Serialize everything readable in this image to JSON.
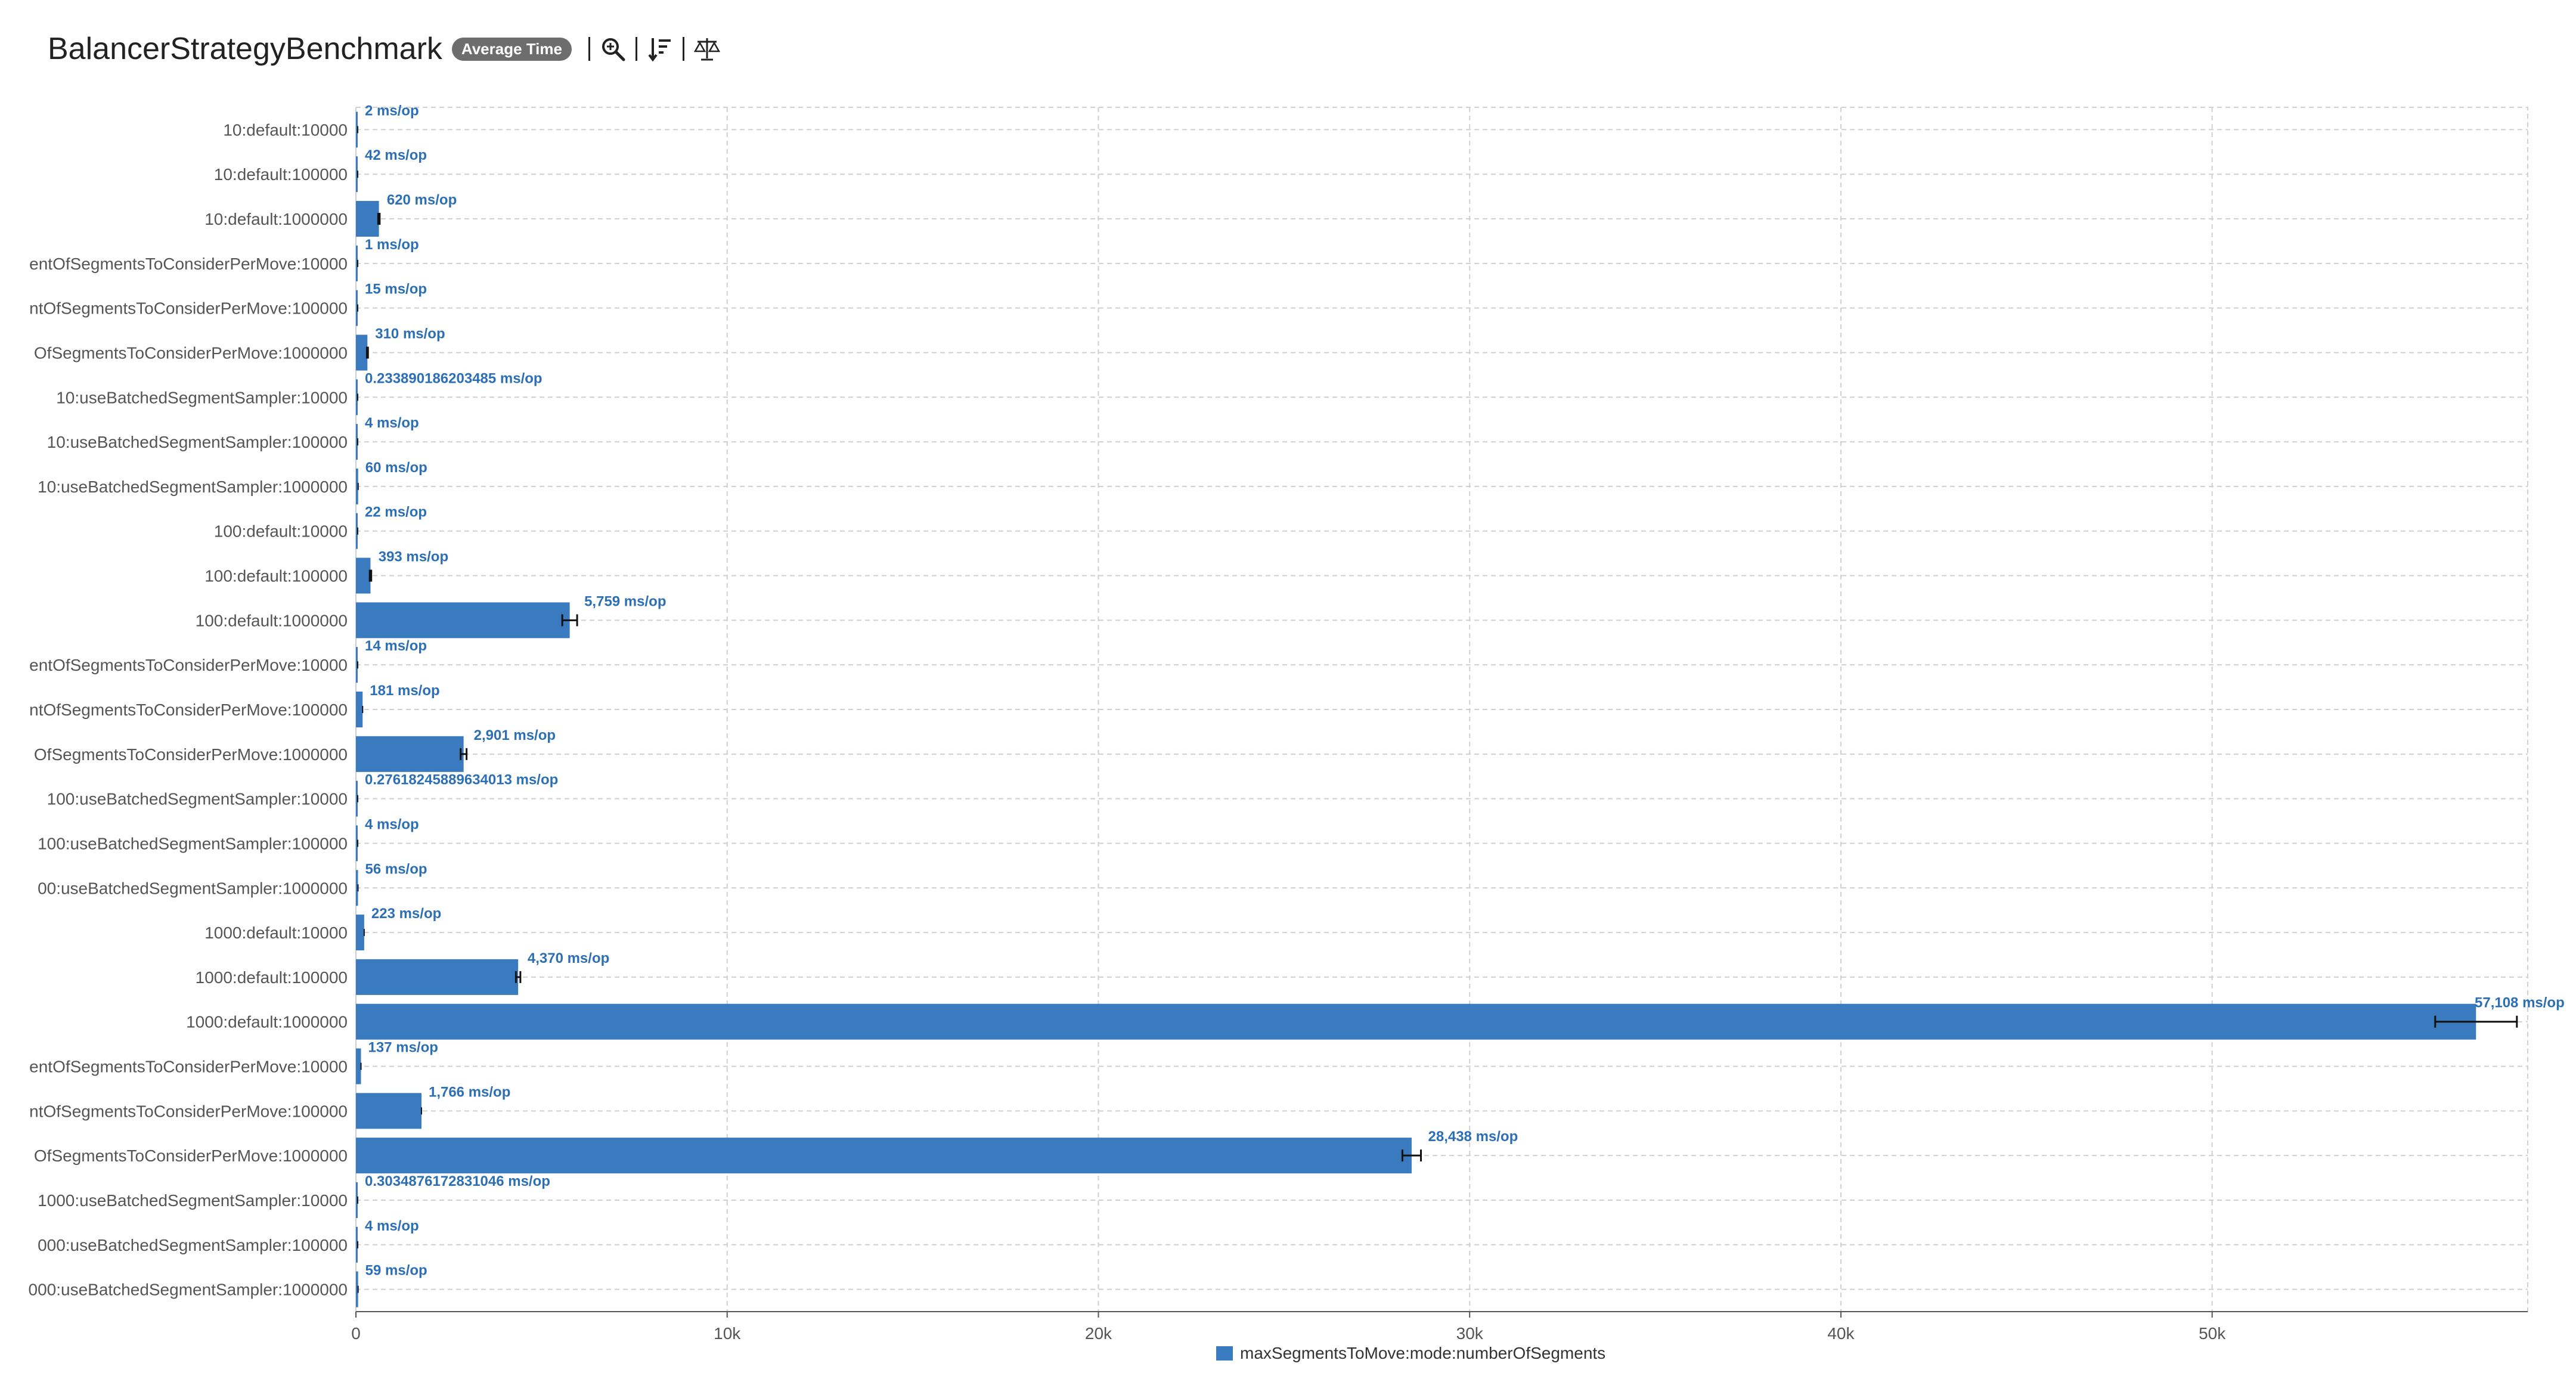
{
  "header": {
    "title": "BalancerStrategyBenchmark",
    "badge": "Average Time",
    "tools": [
      {
        "name": "zoom-icon"
      },
      {
        "name": "sort-icon"
      },
      {
        "name": "compare-scale-icon"
      }
    ]
  },
  "colors": {
    "bar": "#3a7bbf",
    "label": "#2d6fb5",
    "grid": "#d0d0d0",
    "axis_text": "#555555"
  },
  "chart_data": {
    "type": "bar",
    "orientation": "horizontal",
    "title": "",
    "xlabel": "",
    "ylabel": "",
    "xlim": [
      0,
      58500
    ],
    "xticks": [
      {
        "value": 0,
        "label": "0"
      },
      {
        "value": 10000,
        "label": "10k"
      },
      {
        "value": 20000,
        "label": "20k"
      },
      {
        "value": 30000,
        "label": "30k"
      },
      {
        "value": 40000,
        "label": "40k"
      },
      {
        "value": 50000,
        "label": "50k"
      }
    ],
    "grid": true,
    "legend_position": "bottom",
    "series": [
      {
        "name": "maxSegmentsToMove:mode:numberOfSegments",
        "categories": [
          "10:default:10000",
          "10:default:100000",
          "10:default:1000000",
          "entOfSegmentsToConsiderPerMove:10000",
          "ntOfSegmentsToConsiderPerMove:100000",
          "OfSegmentsToConsiderPerMove:1000000",
          "10:useBatchedSegmentSampler:10000",
          "10:useBatchedSegmentSampler:100000",
          "10:useBatchedSegmentSampler:1000000",
          "100:default:10000",
          "100:default:100000",
          "100:default:1000000",
          "entOfSegmentsToConsiderPerMove:10000",
          "ntOfSegmentsToConsiderPerMove:100000",
          "OfSegmentsToConsiderPerMove:1000000",
          "100:useBatchedSegmentSampler:10000",
          "100:useBatchedSegmentSampler:100000",
          "00:useBatchedSegmentSampler:1000000",
          "1000:default:10000",
          "1000:default:100000",
          "1000:default:1000000",
          "entOfSegmentsToConsiderPerMove:10000",
          "ntOfSegmentsToConsiderPerMove:100000",
          "OfSegmentsToConsiderPerMove:1000000",
          "1000:useBatchedSegmentSampler:10000",
          "000:useBatchedSegmentSampler:100000",
          "000:useBatchedSegmentSampler:1000000"
        ],
        "values": [
          2,
          42,
          620,
          1,
          15,
          310,
          0.233890186203485,
          4,
          60,
          22,
          393,
          5759,
          14,
          181,
          2901,
          0.27618245889634013,
          4,
          56,
          223,
          4370,
          57108,
          137,
          1766,
          28438,
          0.3034876172831046,
          4,
          59
        ],
        "errors": [
          0,
          0,
          20,
          0,
          0,
          15,
          0,
          0,
          0,
          0,
          20,
          200,
          0,
          0,
          80,
          0,
          0,
          0,
          0,
          60,
          1100,
          0,
          0,
          250,
          0,
          0,
          0
        ],
        "data_labels": [
          "2 ms/op",
          "42 ms/op",
          "620 ms/op",
          "1 ms/op",
          "15 ms/op",
          "310 ms/op",
          "0.233890186203485 ms/op",
          "4 ms/op",
          "60 ms/op",
          "22 ms/op",
          "393 ms/op",
          "5,759 ms/op",
          "14 ms/op",
          "181 ms/op",
          "2,901 ms/op",
          "0.27618245889634013 ms/op",
          "4 ms/op",
          "56 ms/op",
          "223 ms/op",
          "4,370 ms/op",
          "57,108 ms/op",
          "137 ms/op",
          "1,766 ms/op",
          "28,438 ms/op",
          "0.3034876172831046 ms/op",
          "4 ms/op",
          "59 ms/op"
        ]
      }
    ]
  }
}
